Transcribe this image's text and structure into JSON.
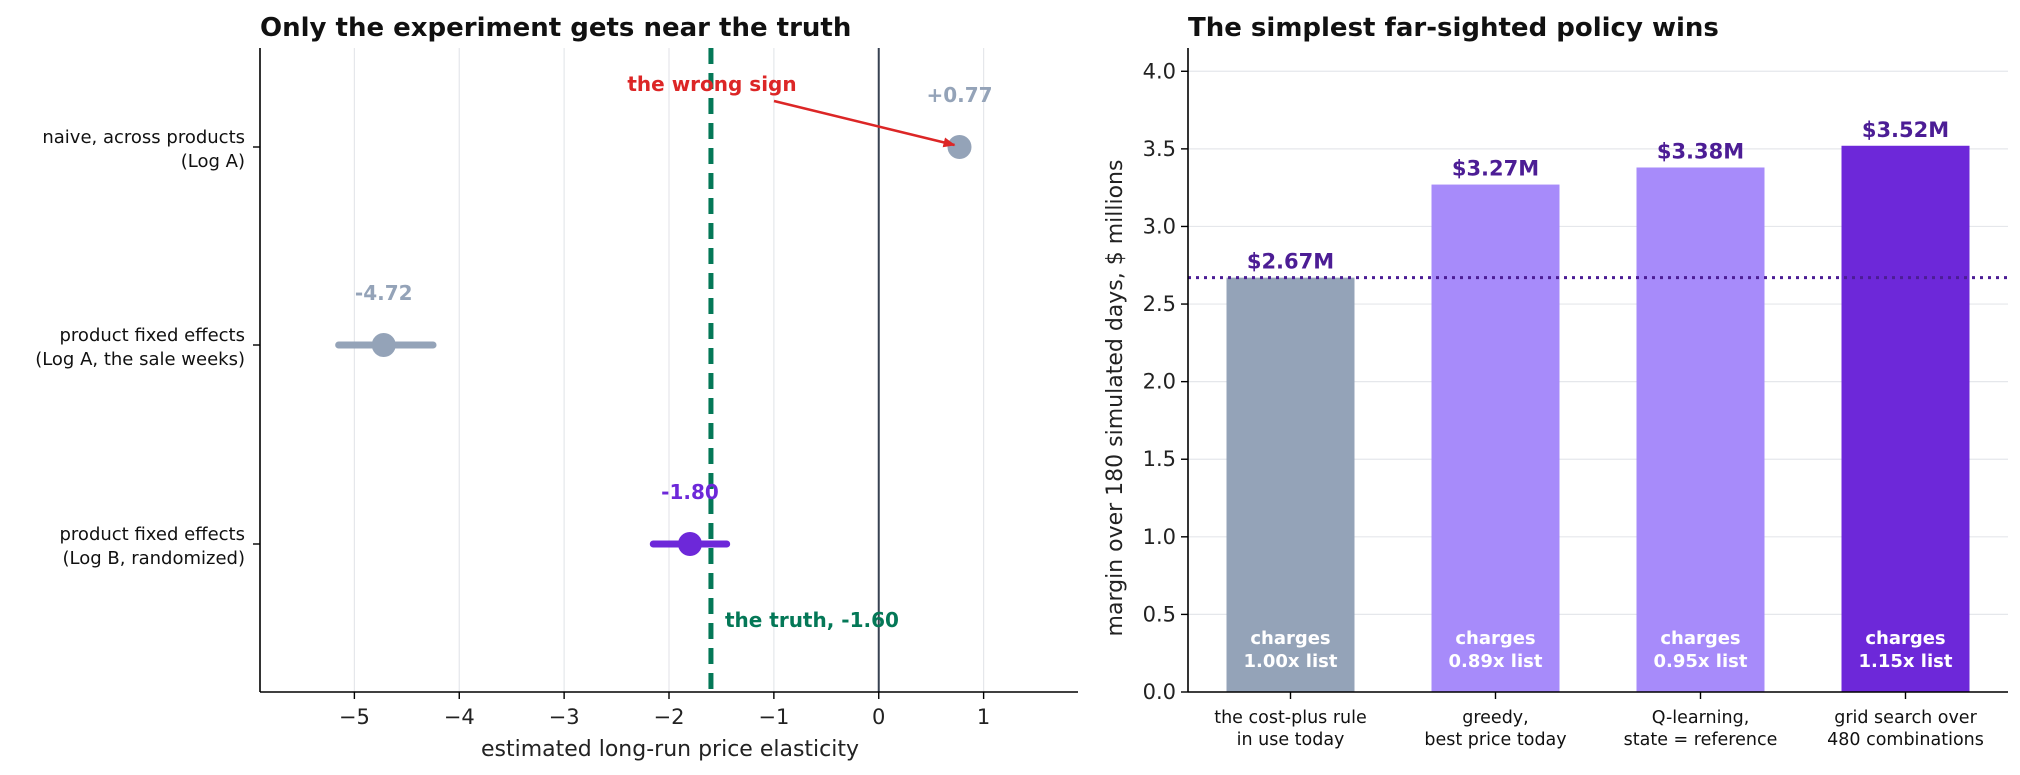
{
  "chart_data": [
    {
      "type": "scatter",
      "title": "Only the experiment gets near the truth",
      "xlabel": "estimated long-run price elasticity",
      "xlim": [
        -5.9,
        1.9
      ],
      "xticks": [
        -5,
        -4,
        -3,
        -2,
        -1,
        0,
        1
      ],
      "xtick_labels": [
        "−5",
        "−4",
        "−3",
        "−2",
        "−1",
        "0",
        "1"
      ],
      "grid": "vertical",
      "categories": [
        [
          "naive, across products",
          "(Log A)"
        ],
        [
          "product fixed effects",
          "(Log A, the sale weeks)"
        ],
        [
          "product fixed effects",
          "(Log B, randomized)"
        ]
      ],
      "points": [
        {
          "value": 0.77,
          "ci": [
            0.77,
            0.77
          ],
          "label": "+0.77",
          "color": "#94a3b8"
        },
        {
          "value": -4.72,
          "ci": [
            -5.15,
            -4.25
          ],
          "label": "-4.72",
          "color": "#94a3b8"
        },
        {
          "value": -1.8,
          "ci": [
            -2.15,
            -1.45
          ],
          "label": "-1.80",
          "color": "#6d28d9"
        }
      ],
      "truth": {
        "value": -1.6,
        "label": "the truth, -1.60",
        "color": "#047857"
      },
      "zero_line": 0,
      "annotation": {
        "text": "the wrong sign",
        "color": "#dc2626",
        "points_to": 0.77
      }
    },
    {
      "type": "bar",
      "title": "The simplest far-sighted policy wins",
      "ylabel": "margin over 180 simulated days, $ millions",
      "ylim": [
        0,
        4.15
      ],
      "yticks": [
        0.0,
        0.5,
        1.0,
        1.5,
        2.0,
        2.5,
        3.0,
        3.5,
        4.0
      ],
      "ytick_labels": [
        "0.0",
        "0.5",
        "1.0",
        "1.5",
        "2.0",
        "2.5",
        "3.0",
        "3.5",
        "4.0"
      ],
      "grid": "horizontal",
      "categories": [
        [
          "the cost-plus rule",
          "in use today"
        ],
        [
          "greedy,",
          "best price today"
        ],
        [
          "Q-learning,",
          "state = reference"
        ],
        [
          "grid search over",
          "480 combinations"
        ]
      ],
      "values": [
        2.67,
        3.27,
        3.38,
        3.52
      ],
      "value_labels": [
        "$2.67M",
        "$3.27M",
        "$3.38M",
        "$3.52M"
      ],
      "inner_labels": [
        [
          "charges",
          "1.00x list"
        ],
        [
          "charges",
          "0.89x list"
        ],
        [
          "charges",
          "0.95x list"
        ],
        [
          "charges",
          "1.15x list"
        ]
      ],
      "colors": [
        "#94a3b8",
        "#a78bfa",
        "#a78bfa",
        "#6d28d9"
      ],
      "baseline": 2.67,
      "baseline_color": "#4c1d95",
      "value_label_color": "#4c1d95"
    }
  ]
}
